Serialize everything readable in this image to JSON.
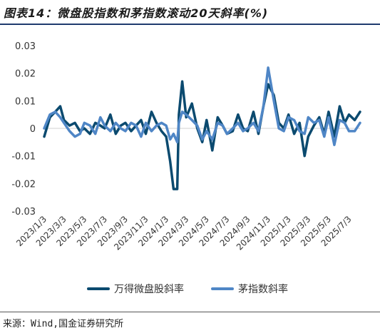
{
  "header": {
    "title": "图表14：微盘股指数和茅指数滚动20天斜率(%)"
  },
  "footer": {
    "source": "来源：Wind,国金证券研究所"
  },
  "colors": {
    "series1": "#0b4a6f",
    "series2": "#4f86c6",
    "zero_line": "#d0d0d0",
    "title_rule": "#1f3b6e"
  },
  "chart_data": {
    "type": "line",
    "title": "",
    "xlabel": "",
    "ylabel": "",
    "ylim": [
      -0.03,
      0.03
    ],
    "y_ticks": [
      "0.03",
      "0.02",
      "0.01",
      "0",
      "-0.01",
      "-0.02",
      "-0.03"
    ],
    "x_ticks": [
      "2023/1/3",
      "2023/3/3",
      "2023/5/3",
      "2023/7/3",
      "2023/9/3",
      "2023/11/3",
      "2024/1/3",
      "2024/3/3",
      "2024/5/3",
      "2024/7/3",
      "2024/9/3",
      "2024/11/3",
      "2025/1/3",
      "2025/3/3",
      "2025/5/3",
      "2025/7/3"
    ],
    "legend_position": "bottom",
    "series": [
      {
        "name": "万得微盘股斜率",
        "x": [
          "2023/1/3",
          "2023/1/20",
          "2023/2/5",
          "2023/2/20",
          "2023/3/3",
          "2023/3/20",
          "2023/4/5",
          "2023/4/20",
          "2023/5/3",
          "2023/5/20",
          "2023/6/5",
          "2023/6/20",
          "2023/7/3",
          "2023/7/20",
          "2023/8/5",
          "2023/8/20",
          "2023/9/3",
          "2023/9/20",
          "2023/10/5",
          "2023/10/20",
          "2023/11/3",
          "2023/11/20",
          "2023/12/5",
          "2023/12/20",
          "2024/1/3",
          "2024/1/15",
          "2024/1/25",
          "2024/2/5",
          "2024/2/10",
          "2024/2/20",
          "2024/3/3",
          "2024/3/20",
          "2024/4/5",
          "2024/4/20",
          "2024/5/3",
          "2024/5/20",
          "2024/6/5",
          "2024/6/20",
          "2024/7/3",
          "2024/7/20",
          "2024/8/5",
          "2024/8/20",
          "2024/9/3",
          "2024/9/20",
          "2024/10/5",
          "2024/10/20",
          "2024/11/3",
          "2024/11/20",
          "2024/12/5",
          "2024/12/20",
          "2025/1/3",
          "2025/1/20",
          "2025/2/5",
          "2025/2/20",
          "2025/3/3",
          "2025/3/20",
          "2025/4/5",
          "2025/4/20",
          "2025/5/3",
          "2025/5/20",
          "2025/6/5",
          "2025/6/20",
          "2025/7/3",
          "2025/7/20",
          "2025/8/5"
        ],
        "y": [
          -0.003,
          0.004,
          0.006,
          0.008,
          0.003,
          0.001,
          0.002,
          -0.001,
          0.0,
          -0.002,
          0.002,
          0.001,
          0.0,
          0.005,
          -0.002,
          0.001,
          0.002,
          -0.001,
          0.001,
          0.003,
          -0.002,
          0.006,
          0.002,
          -0.001,
          -0.003,
          -0.012,
          -0.022,
          -0.022,
          0.005,
          0.017,
          0.004,
          0.009,
          0.0,
          -0.005,
          0.003,
          -0.008,
          0.004,
          0.001,
          -0.002,
          -0.001,
          0.005,
          0.0,
          -0.001,
          0.006,
          -0.002,
          0.008,
          0.016,
          0.012,
          0.002,
          0.0,
          0.005,
          -0.002,
          0.002,
          -0.01,
          -0.003,
          0.001,
          0.004,
          -0.002,
          0.006,
          -0.003,
          0.008,
          0.002,
          0.005,
          0.003,
          0.006
        ]
      },
      {
        "name": "茅指数斜率",
        "x": [
          "2023/1/3",
          "2023/1/20",
          "2023/2/5",
          "2023/2/20",
          "2023/3/3",
          "2023/3/20",
          "2023/4/5",
          "2023/4/20",
          "2023/5/3",
          "2023/5/20",
          "2023/6/5",
          "2023/6/20",
          "2023/7/3",
          "2023/7/20",
          "2023/8/5",
          "2023/8/20",
          "2023/9/3",
          "2023/9/20",
          "2023/10/5",
          "2023/10/20",
          "2023/11/3",
          "2023/11/20",
          "2023/12/5",
          "2023/12/20",
          "2024/1/3",
          "2024/1/15",
          "2024/1/25",
          "2024/2/5",
          "2024/2/10",
          "2024/2/20",
          "2024/3/3",
          "2024/3/20",
          "2024/4/5",
          "2024/4/20",
          "2024/5/3",
          "2024/5/20",
          "2024/6/5",
          "2024/6/20",
          "2024/7/3",
          "2024/7/20",
          "2024/8/5",
          "2024/8/20",
          "2024/9/3",
          "2024/9/20",
          "2024/10/5",
          "2024/10/20",
          "2024/11/3",
          "2024/11/20",
          "2024/12/5",
          "2024/12/20",
          "2025/1/3",
          "2025/1/20",
          "2025/2/5",
          "2025/2/20",
          "2025/3/3",
          "2025/3/20",
          "2025/4/5",
          "2025/4/20",
          "2025/5/3",
          "2025/5/20",
          "2025/6/5",
          "2025/6/20",
          "2025/7/3",
          "2025/7/20",
          "2025/8/5"
        ],
        "y": [
          0.0,
          0.005,
          0.006,
          0.004,
          0.002,
          -0.001,
          -0.003,
          -0.002,
          0.002,
          0.001,
          -0.002,
          0.004,
          0.001,
          -0.001,
          0.002,
          0.0,
          -0.001,
          0.002,
          0.001,
          -0.003,
          0.002,
          -0.001,
          0.001,
          0.002,
          0.001,
          -0.004,
          -0.002,
          -0.005,
          0.002,
          0.006,
          0.005,
          0.003,
          0.001,
          -0.004,
          -0.001,
          -0.004,
          0.002,
          0.001,
          -0.002,
          0.0,
          0.002,
          -0.001,
          0.0,
          0.002,
          -0.001,
          0.008,
          0.022,
          0.01,
          0.0,
          -0.001,
          0.004,
          0.003,
          -0.001,
          -0.002,
          0.004,
          0.002,
          0.003,
          -0.003,
          0.004,
          -0.006,
          0.003,
          0.002,
          -0.001,
          -0.001,
          0.002
        ]
      }
    ]
  }
}
